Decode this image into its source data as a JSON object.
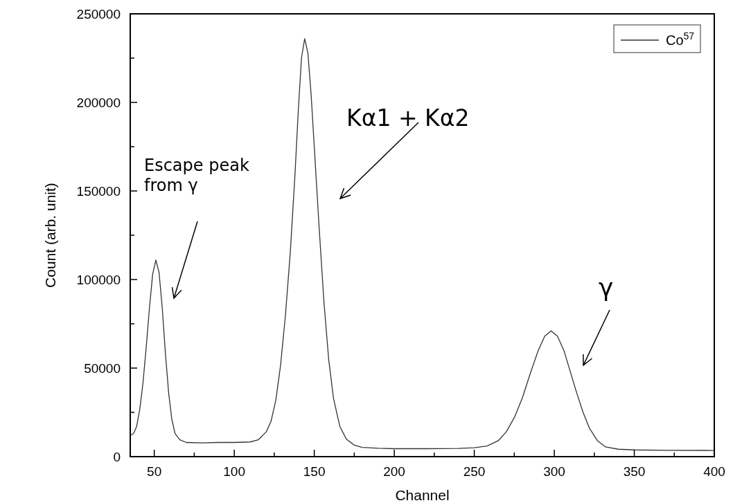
{
  "chart_data": {
    "type": "line",
    "xlabel": "Channel",
    "ylabel": "Count (arb. unit)",
    "xlim": [
      35,
      400
    ],
    "ylim": [
      0,
      250000
    ],
    "xticks": [
      50,
      {
        "value": 75,
        "label": null
      },
      100,
      {
        "value": 125,
        "label": null
      },
      150,
      {
        "value": 175,
        "label": null
      },
      200,
      {
        "value": 225,
        "label": null
      },
      250,
      {
        "value": 275,
        "label": null
      },
      300,
      {
        "value": 325,
        "label": null
      },
      350,
      {
        "value": 375,
        "label": null
      },
      400
    ],
    "yticks": [
      0,
      {
        "value": 25000,
        "label": null
      },
      50000,
      {
        "value": 75000,
        "label": null
      },
      100000,
      {
        "value": 125000,
        "label": null
      },
      150000,
      {
        "value": 175000,
        "label": null
      },
      200000,
      {
        "value": 225000,
        "label": null
      },
      250000
    ],
    "legend": "top right",
    "grid": false,
    "marker": "none",
    "line_style": "solid",
    "series": [
      {
        "name": "Co$^{57}$",
        "color": "#333333",
        "x": [
          35,
          37,
          39,
          41,
          43,
          45,
          47,
          49,
          51,
          53,
          55,
          57,
          59,
          61,
          63,
          66,
          70,
          80,
          90,
          100,
          110,
          115,
          120,
          123,
          126,
          129,
          132,
          135,
          138,
          140,
          142,
          144,
          146,
          148,
          150,
          153,
          156,
          159,
          162,
          166,
          170,
          175,
          180,
          190,
          200,
          220,
          240,
          250,
          258,
          265,
          270,
          275,
          280,
          285,
          290,
          294,
          298,
          302,
          306,
          310,
          314,
          318,
          322,
          327,
          332,
          340,
          350,
          370,
          400
        ],
        "values": [
          12000,
          13000,
          17000,
          27000,
          42000,
          62000,
          84000,
          103000,
          111000,
          104000,
          84000,
          58000,
          36000,
          21000,
          13000,
          9500,
          8000,
          7800,
          8000,
          8000,
          8300,
          9500,
          14000,
          20000,
          32000,
          52000,
          80000,
          115000,
          160000,
          195000,
          225000,
          236000,
          228000,
          205000,
          175000,
          130000,
          88000,
          55000,
          33000,
          17000,
          10000,
          6500,
          5200,
          4700,
          4500,
          4500,
          4600,
          5000,
          6000,
          9000,
          14000,
          22000,
          33000,
          47000,
          60000,
          68000,
          71000,
          68000,
          60000,
          48000,
          36000,
          25000,
          16000,
          9000,
          5500,
          4200,
          3800,
          3600,
          3500
        ]
      }
    ],
    "annotations": [
      "Escape peak from γ",
      "Kα1 + Kα2",
      "γ"
    ]
  }
}
